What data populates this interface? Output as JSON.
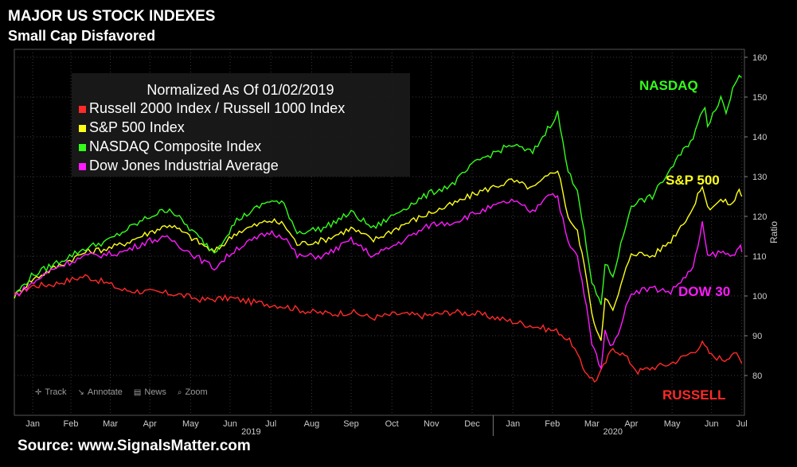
{
  "header": {
    "title": "MAJOR US STOCK INDEXES",
    "subtitle": "Small Cap Disfavored"
  },
  "footer": {
    "source": "Source: www.SignalsMatter.com"
  },
  "toolbar": {
    "items": [
      {
        "label": "Track",
        "icon": "crosshair-icon"
      },
      {
        "label": "Annotate",
        "icon": "annotate-icon"
      },
      {
        "label": "News",
        "icon": "news-icon"
      },
      {
        "label": "Zoom",
        "icon": "zoom-icon"
      }
    ]
  },
  "chart_data": {
    "type": "line",
    "legend_title": "Normalized As Of 01/02/2019",
    "legend_placement": "top-left",
    "ylabel": "Ratio",
    "ylim": [
      70,
      162
    ],
    "yticks": [
      80,
      90,
      100,
      110,
      120,
      130,
      140,
      150,
      160
    ],
    "xlim": [
      "2019-01-02",
      "2020-07-10"
    ],
    "month_ticks": [
      {
        "label": "Jan",
        "date": "2019-01-16"
      },
      {
        "label": "Feb",
        "date": "2019-02-14"
      },
      {
        "label": "Mar",
        "date": "2019-03-16"
      },
      {
        "label": "Apr",
        "date": "2019-04-15"
      },
      {
        "label": "May",
        "date": "2019-05-16"
      },
      {
        "label": "Jun",
        "date": "2019-06-15"
      },
      {
        "label": "Jul",
        "date": "2019-07-16"
      },
      {
        "label": "Aug",
        "date": "2019-08-16"
      },
      {
        "label": "Sep",
        "date": "2019-09-15"
      },
      {
        "label": "Oct",
        "date": "2019-10-16"
      },
      {
        "label": "Nov",
        "date": "2019-11-15"
      },
      {
        "label": "Dec",
        "date": "2019-12-16"
      },
      {
        "label": "Jan",
        "date": "2020-01-16"
      },
      {
        "label": "Feb",
        "date": "2020-02-15"
      },
      {
        "label": "Mar",
        "date": "2020-03-16"
      },
      {
        "label": "Apr",
        "date": "2020-04-15"
      },
      {
        "label": "May",
        "date": "2020-05-16"
      },
      {
        "label": "Jun",
        "date": "2020-06-15"
      },
      {
        "label": "Jul",
        "date": "2020-07-08"
      }
    ],
    "year_labels": [
      {
        "label": "2019",
        "date": "2019-07-01"
      },
      {
        "label": "2020",
        "date": "2020-04-01"
      }
    ],
    "year_divider_date": "2020-01-01",
    "series": [
      {
        "name": "Russell 2000 Index / Russell 1000 Index",
        "tag": "RUSSELL",
        "color": "#ff2a2a",
        "points": [
          [
            "2019-01-02",
            100
          ],
          [
            "2019-01-15",
            102.5
          ],
          [
            "2019-02-01",
            103
          ],
          [
            "2019-02-25",
            105
          ],
          [
            "2019-03-15",
            103
          ],
          [
            "2019-03-25",
            101.5
          ],
          [
            "2019-04-15",
            101
          ],
          [
            "2019-05-05",
            100.5
          ],
          [
            "2019-05-25",
            99
          ],
          [
            "2019-06-15",
            99.5
          ],
          [
            "2019-07-01",
            98.5
          ],
          [
            "2019-07-25",
            97.5
          ],
          [
            "2019-08-15",
            96
          ],
          [
            "2019-09-01",
            95.5
          ],
          [
            "2019-09-15",
            96
          ],
          [
            "2019-10-01",
            94.5
          ],
          [
            "2019-10-20",
            95.5
          ],
          [
            "2019-11-10",
            95
          ],
          [
            "2019-12-01",
            96
          ],
          [
            "2019-12-20",
            95.5
          ],
          [
            "2020-01-10",
            94
          ],
          [
            "2020-01-31",
            92.5
          ],
          [
            "2020-02-20",
            91
          ],
          [
            "2020-03-01",
            88
          ],
          [
            "2020-03-09",
            82
          ],
          [
            "2020-03-18",
            78.5
          ],
          [
            "2020-03-23",
            81
          ],
          [
            "2020-04-01",
            87
          ],
          [
            "2020-04-10",
            85
          ],
          [
            "2020-04-20",
            81
          ],
          [
            "2020-05-01",
            82
          ],
          [
            "2020-05-15",
            83
          ],
          [
            "2020-06-01",
            86
          ],
          [
            "2020-06-08",
            88
          ],
          [
            "2020-06-15",
            85
          ],
          [
            "2020-06-25",
            84
          ],
          [
            "2020-07-02",
            86
          ],
          [
            "2020-07-08",
            83
          ]
        ]
      },
      {
        "name": "S&P 500 Index",
        "tag": "S&P 500",
        "color": "#ffff1a",
        "points": [
          [
            "2019-01-02",
            100
          ],
          [
            "2019-01-15",
            104
          ],
          [
            "2019-02-01",
            107
          ],
          [
            "2019-02-25",
            111
          ],
          [
            "2019-03-15",
            112
          ],
          [
            "2019-03-25",
            113
          ],
          [
            "2019-04-15",
            116
          ],
          [
            "2019-04-30",
            118
          ],
          [
            "2019-05-15",
            115
          ],
          [
            "2019-06-03",
            111
          ],
          [
            "2019-06-20",
            116
          ],
          [
            "2019-07-15",
            119
          ],
          [
            "2019-07-26",
            118
          ],
          [
            "2019-08-05",
            113
          ],
          [
            "2019-08-25",
            114
          ],
          [
            "2019-09-15",
            117
          ],
          [
            "2019-10-02",
            114
          ],
          [
            "2019-10-25",
            118
          ],
          [
            "2019-11-15",
            121
          ],
          [
            "2019-12-01",
            123
          ],
          [
            "2019-12-20",
            126
          ],
          [
            "2020-01-15",
            129
          ],
          [
            "2020-01-31",
            127
          ],
          [
            "2020-02-19",
            132
          ],
          [
            "2020-02-27",
            120
          ],
          [
            "2020-03-05",
            116
          ],
          [
            "2020-03-12",
            105
          ],
          [
            "2020-03-16",
            95
          ],
          [
            "2020-03-23",
            89
          ],
          [
            "2020-03-26",
            100
          ],
          [
            "2020-04-01",
            96
          ],
          [
            "2020-04-15",
            111
          ],
          [
            "2020-05-01",
            110
          ],
          [
            "2020-05-15",
            114
          ],
          [
            "2020-06-01",
            122
          ],
          [
            "2020-06-08",
            128
          ],
          [
            "2020-06-12",
            122
          ],
          [
            "2020-06-22",
            124
          ],
          [
            "2020-07-01",
            123
          ],
          [
            "2020-07-06",
            127
          ],
          [
            "2020-07-08",
            125
          ]
        ]
      },
      {
        "name": "NASDAQ Composite Index",
        "tag": "NASDAQ",
        "color": "#33ff1a",
        "points": [
          [
            "2019-01-02",
            100
          ],
          [
            "2019-01-15",
            105
          ],
          [
            "2019-02-01",
            108
          ],
          [
            "2019-02-25",
            112
          ],
          [
            "2019-03-15",
            114
          ],
          [
            "2019-03-25",
            116
          ],
          [
            "2019-04-15",
            120
          ],
          [
            "2019-04-30",
            122
          ],
          [
            "2019-05-15",
            117
          ],
          [
            "2019-06-03",
            111
          ],
          [
            "2019-06-20",
            119
          ],
          [
            "2019-07-15",
            124
          ],
          [
            "2019-07-26",
            123
          ],
          [
            "2019-08-05",
            116
          ],
          [
            "2019-08-25",
            117
          ],
          [
            "2019-09-15",
            121
          ],
          [
            "2019-10-02",
            117
          ],
          [
            "2019-10-25",
            122
          ],
          [
            "2019-11-15",
            126
          ],
          [
            "2019-12-01",
            128
          ],
          [
            "2019-12-20",
            134
          ],
          [
            "2020-01-15",
            138
          ],
          [
            "2020-01-31",
            136
          ],
          [
            "2020-02-19",
            146
          ],
          [
            "2020-02-27",
            131
          ],
          [
            "2020-03-05",
            127
          ],
          [
            "2020-03-12",
            112
          ],
          [
            "2020-03-16",
            103
          ],
          [
            "2020-03-23",
            98
          ],
          [
            "2020-03-26",
            108
          ],
          [
            "2020-04-01",
            105
          ],
          [
            "2020-04-15",
            123
          ],
          [
            "2020-05-01",
            125
          ],
          [
            "2020-05-15",
            132
          ],
          [
            "2020-06-01",
            140
          ],
          [
            "2020-06-10",
            148
          ],
          [
            "2020-06-12",
            143
          ],
          [
            "2020-06-22",
            150
          ],
          [
            "2020-06-26",
            146
          ],
          [
            "2020-07-01",
            152
          ],
          [
            "2020-07-06",
            156
          ],
          [
            "2020-07-08",
            155
          ]
        ]
      },
      {
        "name": "Dow Jones Industrial Average",
        "tag": "DOW 30",
        "color": "#ff1aff",
        "points": [
          [
            "2019-01-02",
            100
          ],
          [
            "2019-01-15",
            103
          ],
          [
            "2019-02-01",
            107
          ],
          [
            "2019-02-25",
            110
          ],
          [
            "2019-03-15",
            110.5
          ],
          [
            "2019-03-25",
            111
          ],
          [
            "2019-04-15",
            114
          ],
          [
            "2019-04-30",
            114.5
          ],
          [
            "2019-05-15",
            111
          ],
          [
            "2019-06-03",
            107
          ],
          [
            "2019-06-20",
            112
          ],
          [
            "2019-07-15",
            116
          ],
          [
            "2019-07-26",
            115
          ],
          [
            "2019-08-05",
            110
          ],
          [
            "2019-08-25",
            110
          ],
          [
            "2019-09-15",
            114
          ],
          [
            "2019-10-02",
            110
          ],
          [
            "2019-10-25",
            114
          ],
          [
            "2019-11-15",
            118
          ],
          [
            "2019-12-01",
            118.5
          ],
          [
            "2019-12-20",
            121
          ],
          [
            "2020-01-15",
            124
          ],
          [
            "2020-01-31",
            121
          ],
          [
            "2020-02-12",
            126
          ],
          [
            "2020-02-19",
            125
          ],
          [
            "2020-02-27",
            113
          ],
          [
            "2020-03-05",
            110
          ],
          [
            "2020-03-12",
            97
          ],
          [
            "2020-03-16",
            88
          ],
          [
            "2020-03-23",
            82
          ],
          [
            "2020-03-26",
            91
          ],
          [
            "2020-04-01",
            87
          ],
          [
            "2020-04-15",
            101
          ],
          [
            "2020-05-01",
            102
          ],
          [
            "2020-05-15",
            101
          ],
          [
            "2020-06-01",
            107
          ],
          [
            "2020-06-08",
            118
          ],
          [
            "2020-06-12",
            110
          ],
          [
            "2020-06-22",
            111
          ],
          [
            "2020-07-01",
            110
          ],
          [
            "2020-07-06",
            113
          ],
          [
            "2020-07-08",
            111
          ]
        ]
      }
    ]
  }
}
